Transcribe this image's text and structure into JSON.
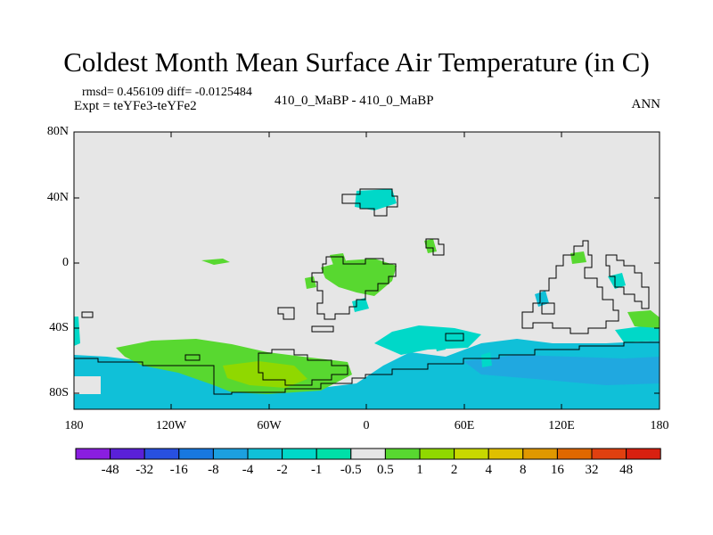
{
  "figure": {
    "title": "Coldest Month Mean Surface Air Temperature (in C)",
    "stats": "rmsd= 0.456109 diff= -0.0125484",
    "experiment": "Expt = teYFe3-teYFe2",
    "comparison": "410_0_MaBP - 410_0_MaBP",
    "season": "ANN"
  },
  "map": {
    "y_ticks": [
      "80N",
      "40N",
      "0",
      "40S",
      "80S"
    ],
    "x_ticks": [
      "180",
      "120W",
      "60W",
      "0",
      "60E",
      "120E",
      "180"
    ],
    "colors": {
      "background_band": "#e6e6e6",
      "cold_1": "#00d8c8",
      "cold_2": "#10c0d8",
      "cold_3": "#20a8e0",
      "warm_1": "#58d830",
      "warm_2": "#90d800"
    }
  },
  "legend": {
    "labels": [
      "-48",
      "-32",
      "-16",
      "-8",
      "-4",
      "-2",
      "-1",
      "-0.5",
      "0.5",
      "1",
      "2",
      "4",
      "8",
      "16",
      "32",
      "48"
    ],
    "colors": [
      "#8a1ee0",
      "#5a20d8",
      "#2850e0",
      "#1878e0",
      "#1ca0e0",
      "#10c0d8",
      "#00d8c8",
      "#00e0a8",
      "#e6e6e6",
      "#58d830",
      "#90d800",
      "#c8d800",
      "#e0c000",
      "#e09800",
      "#e06800",
      "#e04010",
      "#d82010"
    ]
  }
}
